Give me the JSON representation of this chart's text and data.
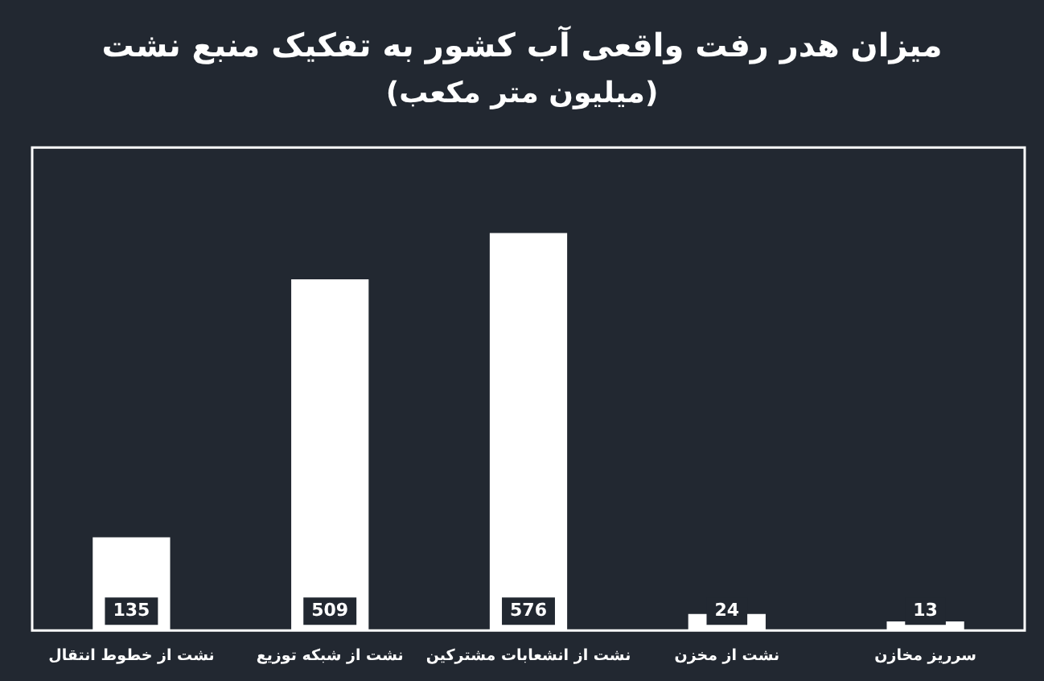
{
  "chart_data": {
    "type": "bar",
    "title": "میزان هدر رفت واقعی آب کشور به تفکیک منبع نشت",
    "subtitle": "(میلیون متر مکعب)",
    "categories": [
      "نشت از خطوط انتقال",
      "نشت از شبکه توزیع",
      "نشت از انشعابات مشترکین",
      "نشت از مخزن",
      "سرریز مخازن"
    ],
    "values": [
      135,
      509,
      576,
      24,
      13
    ],
    "color": "#ffffff",
    "ylim": [
      0,
      700
    ],
    "tick_labels": "x",
    "data_labels": true,
    "grid": false,
    "legend": false
  }
}
